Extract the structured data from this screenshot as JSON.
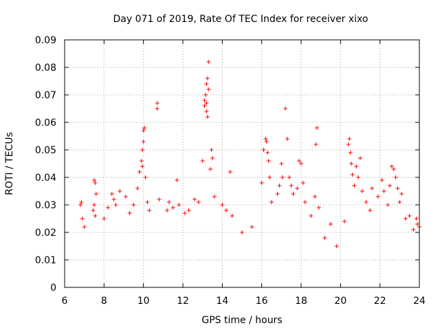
{
  "chart_data": {
    "type": "scatter",
    "title": "Day 071 of 2019, Rate Of TEC Index for receiver xixo",
    "xlabel": "GPS time / hours",
    "ylabel": "ROTI / TECUs",
    "xlim": [
      6,
      24
    ],
    "ylim": [
      0,
      0.09
    ],
    "x_ticks": [
      "6",
      "8",
      "10",
      "12",
      "14",
      "16",
      "18",
      "20",
      "22",
      "24"
    ],
    "y_ticks": [
      "0",
      "0.01",
      "0.02",
      "0.03",
      "0.04",
      "0.05",
      "0.06",
      "0.07",
      "0.08",
      "0.09"
    ],
    "grid": true,
    "marker": "+",
    "color": "#ff0000",
    "series": [
      {
        "name": "ROTI",
        "points": [
          [
            6.8,
            0.03
          ],
          [
            6.85,
            0.031
          ],
          [
            6.9,
            0.025
          ],
          [
            7.0,
            0.022
          ],
          [
            7.5,
            0.039
          ],
          [
            7.55,
            0.038
          ],
          [
            7.6,
            0.034
          ],
          [
            7.5,
            0.03
          ],
          [
            7.45,
            0.028
          ],
          [
            7.55,
            0.026
          ],
          [
            8.0,
            0.025
          ],
          [
            8.2,
            0.029
          ],
          [
            8.4,
            0.034
          ],
          [
            8.5,
            0.032
          ],
          [
            8.6,
            0.03
          ],
          [
            8.8,
            0.035
          ],
          [
            9.1,
            0.033
          ],
          [
            9.3,
            0.027
          ],
          [
            9.5,
            0.03
          ],
          [
            9.7,
            0.036
          ],
          [
            9.8,
            0.042
          ],
          [
            9.9,
            0.046
          ],
          [
            9.95,
            0.05
          ],
          [
            10.0,
            0.057
          ],
          [
            10.05,
            0.058
          ],
          [
            10.0,
            0.053
          ],
          [
            9.95,
            0.044
          ],
          [
            10.1,
            0.04
          ],
          [
            10.2,
            0.031
          ],
          [
            10.3,
            0.028
          ],
          [
            10.7,
            0.067
          ],
          [
            10.7,
            0.065
          ],
          [
            10.8,
            0.032
          ],
          [
            11.2,
            0.028
          ],
          [
            11.3,
            0.031
          ],
          [
            11.5,
            0.029
          ],
          [
            11.7,
            0.039
          ],
          [
            11.8,
            0.03
          ],
          [
            12.1,
            0.027
          ],
          [
            12.3,
            0.028
          ],
          [
            12.6,
            0.032
          ],
          [
            12.8,
            0.031
          ],
          [
            13.0,
            0.046
          ],
          [
            13.1,
            0.068
          ],
          [
            13.15,
            0.07
          ],
          [
            13.2,
            0.064
          ],
          [
            13.2,
            0.074
          ],
          [
            13.25,
            0.076
          ],
          [
            13.3,
            0.072
          ],
          [
            13.3,
            0.082
          ],
          [
            13.1,
            0.066
          ],
          [
            13.2,
            0.067
          ],
          [
            13.25,
            0.062
          ],
          [
            13.4,
            0.043
          ],
          [
            13.45,
            0.05
          ],
          [
            13.5,
            0.047
          ],
          [
            13.6,
            0.033
          ],
          [
            14.0,
            0.03
          ],
          [
            14.2,
            0.028
          ],
          [
            14.4,
            0.042
          ],
          [
            14.5,
            0.026
          ],
          [
            15.0,
            0.02
          ],
          [
            15.5,
            0.022
          ],
          [
            16.0,
            0.038
          ],
          [
            16.1,
            0.05
          ],
          [
            16.2,
            0.054
          ],
          [
            16.25,
            0.053
          ],
          [
            16.3,
            0.049
          ],
          [
            16.35,
            0.046
          ],
          [
            16.4,
            0.04
          ],
          [
            16.5,
            0.031
          ],
          [
            16.8,
            0.034
          ],
          [
            16.9,
            0.037
          ],
          [
            17.0,
            0.045
          ],
          [
            17.05,
            0.04
          ],
          [
            17.2,
            0.065
          ],
          [
            17.3,
            0.054
          ],
          [
            17.4,
            0.04
          ],
          [
            17.5,
            0.037
          ],
          [
            17.6,
            0.034
          ],
          [
            17.8,
            0.036
          ],
          [
            17.9,
            0.046
          ],
          [
            18.0,
            0.045
          ],
          [
            18.1,
            0.038
          ],
          [
            18.2,
            0.031
          ],
          [
            18.5,
            0.026
          ],
          [
            18.7,
            0.033
          ],
          [
            18.8,
            0.058
          ],
          [
            18.75,
            0.052
          ],
          [
            18.9,
            0.029
          ],
          [
            19.2,
            0.018
          ],
          [
            19.5,
            0.023
          ],
          [
            19.8,
            0.015
          ],
          [
            20.2,
            0.024
          ],
          [
            20.4,
            0.052
          ],
          [
            20.45,
            0.054
          ],
          [
            20.5,
            0.049
          ],
          [
            20.55,
            0.045
          ],
          [
            20.6,
            0.041
          ],
          [
            20.7,
            0.037
          ],
          [
            20.8,
            0.044
          ],
          [
            20.9,
            0.04
          ],
          [
            21.0,
            0.047
          ],
          [
            21.1,
            0.035
          ],
          [
            21.3,
            0.031
          ],
          [
            21.5,
            0.028
          ],
          [
            21.6,
            0.036
          ],
          [
            21.9,
            0.033
          ],
          [
            22.1,
            0.039
          ],
          [
            22.2,
            0.035
          ],
          [
            22.4,
            0.03
          ],
          [
            22.5,
            0.037
          ],
          [
            22.6,
            0.044
          ],
          [
            22.7,
            0.043
          ],
          [
            22.8,
            0.04
          ],
          [
            22.9,
            0.036
          ],
          [
            23.0,
            0.031
          ],
          [
            23.1,
            0.034
          ],
          [
            23.3,
            0.025
          ],
          [
            23.5,
            0.026
          ],
          [
            23.7,
            0.021
          ],
          [
            23.85,
            0.025
          ],
          [
            23.9,
            0.023
          ],
          [
            24.0,
            0.022
          ]
        ]
      }
    ]
  }
}
